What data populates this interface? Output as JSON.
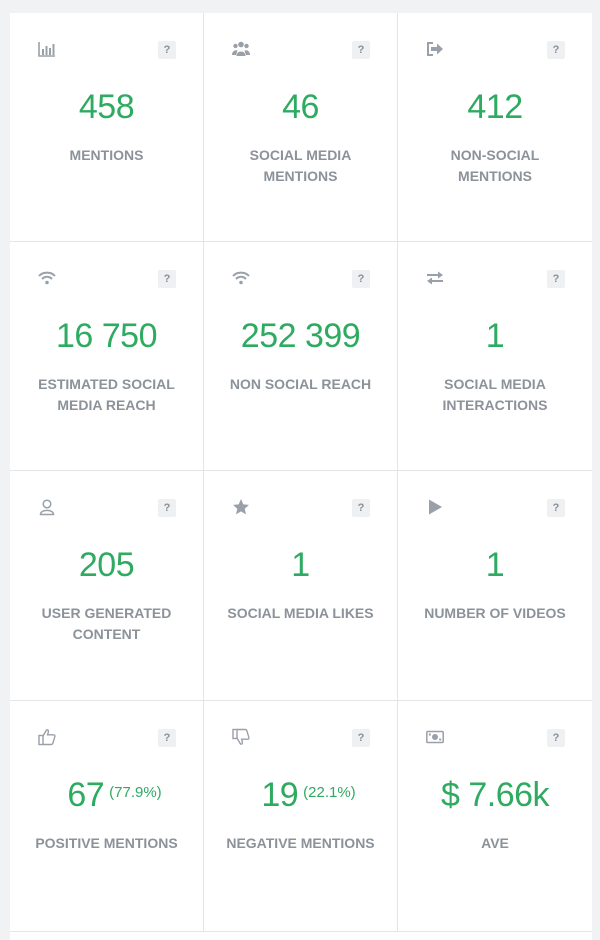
{
  "cards": [
    {
      "icon": "bar-chart-icon",
      "value": "458",
      "label": "MENTIONS"
    },
    {
      "icon": "users-icon",
      "value": "46",
      "label": "SOCIAL MEDIA MENTIONS"
    },
    {
      "icon": "sign-out-icon",
      "value": "412",
      "label": "NON-SOCIAL MENTIONS"
    },
    {
      "icon": "wifi-icon",
      "value": "16 750",
      "label": "ESTIMATED SOCIAL MEDIA REACH"
    },
    {
      "icon": "wifi-icon",
      "value": "252 399",
      "label": "NON SOCIAL REACH"
    },
    {
      "icon": "exchange-arrows-icon",
      "value": "1",
      "label": "SOCIAL MEDIA INTERACTIONS"
    },
    {
      "icon": "user-icon",
      "value": "205",
      "label": "USER GENERATED CONTENT"
    },
    {
      "icon": "star-icon",
      "value": "1",
      "label": "SOCIAL MEDIA LIKES"
    },
    {
      "icon": "play-icon",
      "value": "1",
      "label": "NUMBER OF VIDEOS"
    },
    {
      "icon": "thumbs-up-icon",
      "value": "67",
      "percent": "(77.9%)",
      "label": "POSITIVE MENTIONS"
    },
    {
      "icon": "thumbs-down-icon",
      "value": "19",
      "percent": "(22.1%)",
      "label": "NEGATIVE MENTIONS"
    },
    {
      "icon": "money-icon",
      "value": "$ 7.66k",
      "label": "AVE"
    }
  ],
  "help_label": "?",
  "colors": {
    "value": "#2eaa61",
    "label": "#8c929a",
    "icon": "#9aa0a8",
    "divider": "#e3e5e8"
  }
}
